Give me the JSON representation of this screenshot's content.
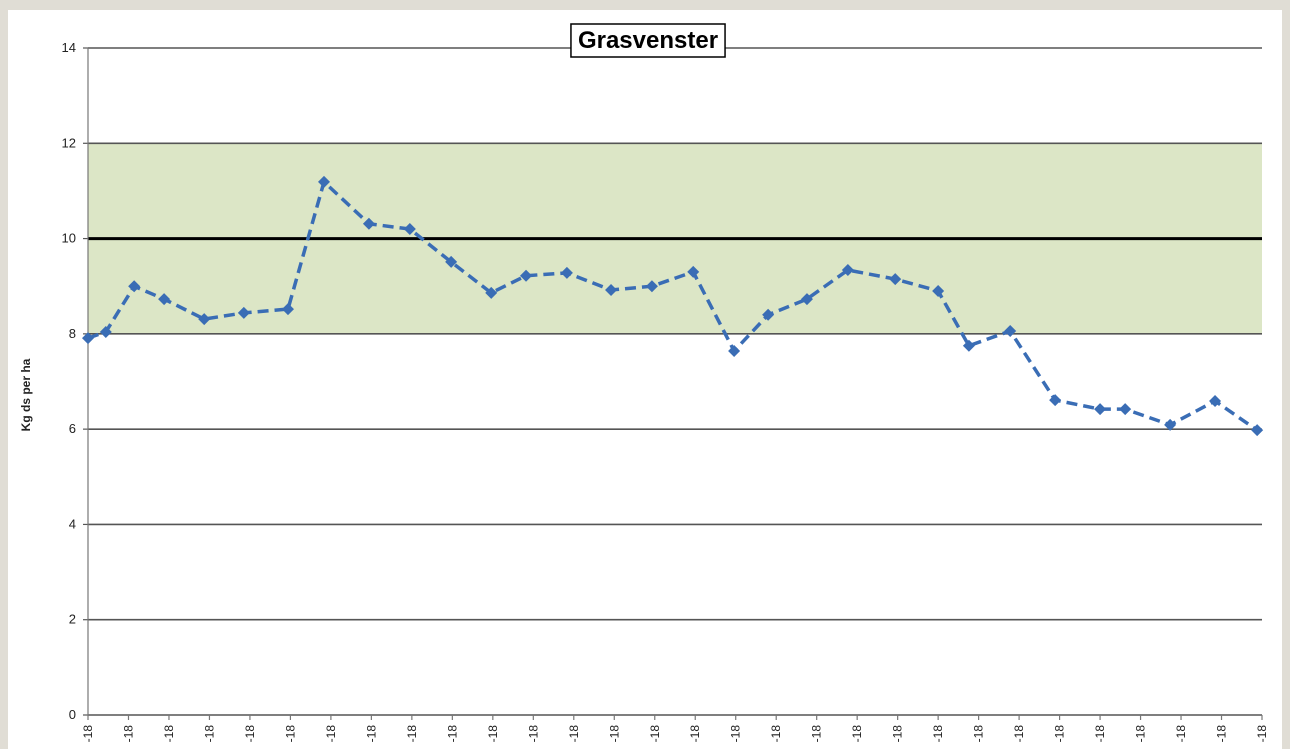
{
  "chart_data": {
    "type": "line",
    "title": "Grasvenster",
    "y_label": "Kg ds per ha",
    "ylim": [
      0,
      14
    ],
    "yticks": [
      0,
      2,
      4,
      6,
      8,
      10,
      12,
      14
    ],
    "xlim": [
      0,
      29
    ],
    "xticks": [
      {
        "value": 0,
        "label": "-18"
      },
      {
        "value": 1,
        "label": "-18"
      },
      {
        "value": 2,
        "label": "-18"
      },
      {
        "value": 3,
        "label": "-18"
      },
      {
        "value": 4,
        "label": "-18"
      },
      {
        "value": 5,
        "label": "-18"
      },
      {
        "value": 6,
        "label": "-18"
      },
      {
        "value": 7,
        "label": "-18"
      },
      {
        "value": 8,
        "label": "-18"
      },
      {
        "value": 9,
        "label": "-18"
      },
      {
        "value": 10,
        "label": "-18"
      },
      {
        "value": 11,
        "label": "-18"
      },
      {
        "value": 12,
        "label": "-18"
      },
      {
        "value": 13,
        "label": "-18"
      },
      {
        "value": 14,
        "label": "-18"
      },
      {
        "value": 15,
        "label": "-18"
      },
      {
        "value": 16,
        "label": "-18"
      },
      {
        "value": 17,
        "label": "-18"
      },
      {
        "value": 18,
        "label": "-18"
      },
      {
        "value": 19,
        "label": "-18"
      },
      {
        "value": 20,
        "label": "-18"
      },
      {
        "value": 21,
        "label": "-18"
      },
      {
        "value": 22,
        "label": "-18"
      },
      {
        "value": 23,
        "label": "-18"
      },
      {
        "value": 24,
        "label": "-18"
      },
      {
        "value": 25,
        "label": "-18"
      },
      {
        "value": 26,
        "label": "-18"
      },
      {
        "value": 27,
        "label": "-18"
      },
      {
        "value": 28,
        "label": "-18"
      },
      {
        "value": 29,
        "label": "-18"
      }
    ],
    "x": [
      0,
      0.44,
      1.14,
      1.88,
      2.87,
      3.85,
      4.94,
      5.83,
      6.94,
      7.95,
      8.97,
      9.96,
      10.82,
      11.83,
      12.92,
      13.93,
      14.95,
      15.96,
      16.8,
      17.76,
      18.77,
      19.94,
      21.0,
      21.76,
      22.78,
      23.89,
      25.0,
      25.62,
      26.73,
      27.84,
      28.88
    ],
    "values": [
      7.91,
      8.04,
      9.0,
      8.73,
      8.31,
      8.44,
      8.52,
      11.19,
      10.31,
      10.2,
      9.51,
      8.86,
      9.22,
      9.28,
      8.92,
      9.0,
      9.3,
      7.64,
      8.4,
      8.73,
      9.34,
      9.15,
      8.9,
      7.75,
      8.06,
      6.61,
      6.42,
      6.42,
      6.09,
      6.59,
      5.98
    ],
    "color": "#3a6db5",
    "line_style": "dashed",
    "band": [
      8,
      12
    ],
    "band_color": "#dce6c6",
    "reference_line": 10,
    "grid": true
  }
}
